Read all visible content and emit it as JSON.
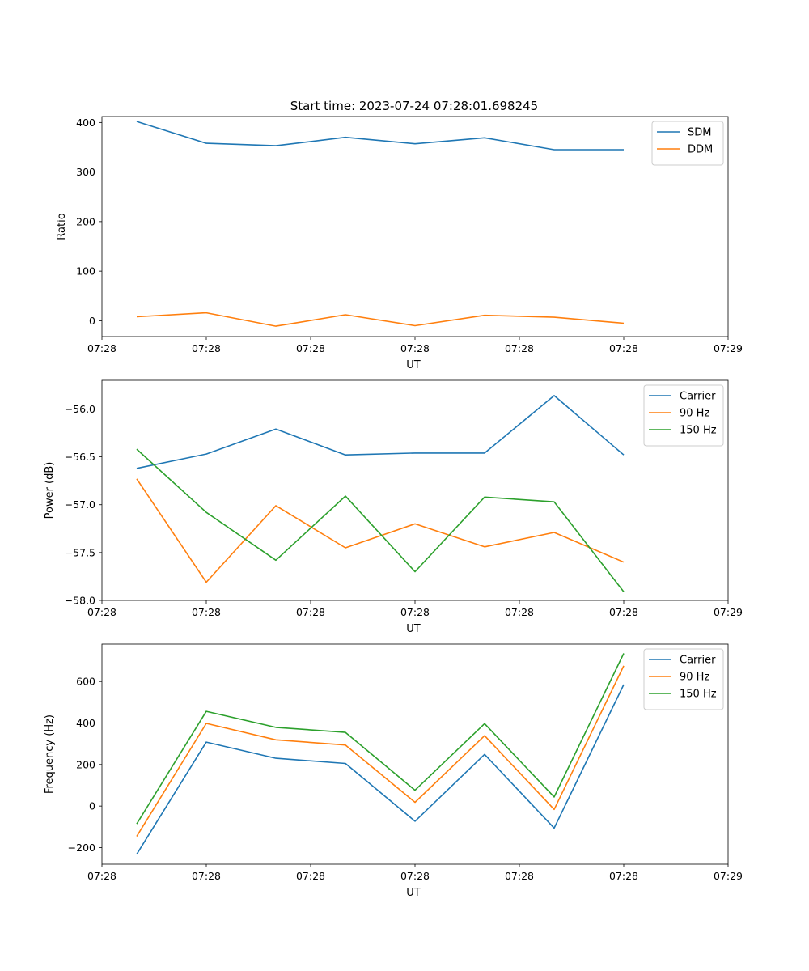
{
  "figure_title": "Start time: 2023-07-24 07:28:01.698245",
  "colors": {
    "blue": "#1f77b4",
    "orange": "#ff7f0e",
    "green": "#2ca02c"
  },
  "chart_data": [
    {
      "type": "line",
      "title": "Start time: 2023-07-24 07:28:01.698245",
      "xlabel": "UT",
      "ylabel": "Ratio",
      "x": [
        0,
        1,
        2,
        3,
        4,
        5,
        6,
        7
      ],
      "xlim": [
        -0.5,
        8.5
      ],
      "xticks": [
        -0.5,
        1,
        2.5,
        4,
        5.5,
        7,
        8.5
      ],
      "xtick_labels": [
        "07:28",
        "07:28",
        "07:28",
        "07:28",
        "07:28",
        "07:28",
        "07:29"
      ],
      "ylim": [
        -32,
        412
      ],
      "yticks": [
        0,
        100,
        200,
        300,
        400
      ],
      "ytick_labels": [
        "0",
        "100",
        "200",
        "300",
        "400"
      ],
      "legend": "top-right",
      "series": [
        {
          "name": "SDM",
          "color": "#1f77b4",
          "values": [
            402,
            358,
            353,
            370,
            357,
            369,
            345,
            345
          ]
        },
        {
          "name": "DDM",
          "color": "#ff7f0e",
          "values": [
            8,
            16,
            -11,
            12,
            -10,
            11,
            7,
            -5
          ]
        }
      ]
    },
    {
      "type": "line",
      "title": "",
      "xlabel": "UT",
      "ylabel": "Power (dB)",
      "x": [
        0,
        1,
        2,
        3,
        4,
        5,
        6,
        7
      ],
      "xlim": [
        -0.5,
        8.5
      ],
      "xticks": [
        -0.5,
        1,
        2.5,
        4,
        5.5,
        7,
        8.5
      ],
      "xtick_labels": [
        "07:28",
        "07:28",
        "07:28",
        "07:28",
        "07:28",
        "07:28",
        "07:29"
      ],
      "ylim": [
        -58.0,
        -55.7
      ],
      "yticks": [
        -58.0,
        -57.5,
        -57.0,
        -56.5,
        -56.0
      ],
      "ytick_labels": [
        "−58.0",
        "−57.5",
        "−57.0",
        "−56.5",
        "−56.0"
      ],
      "legend": "top-right",
      "series": [
        {
          "name": "Carrier",
          "color": "#1f77b4",
          "values": [
            -56.62,
            -56.47,
            -56.21,
            -56.48,
            -56.46,
            -56.46,
            -55.86,
            -56.48
          ]
        },
        {
          "name": "90 Hz",
          "color": "#ff7f0e",
          "values": [
            -56.73,
            -57.81,
            -57.01,
            -57.45,
            -57.2,
            -57.44,
            -57.29,
            -57.6
          ]
        },
        {
          "name": "150 Hz",
          "color": "#2ca02c",
          "values": [
            -56.42,
            -57.08,
            -57.58,
            -56.91,
            -57.7,
            -56.92,
            -56.97,
            -57.91
          ]
        }
      ]
    },
    {
      "type": "line",
      "title": "",
      "xlabel": "UT",
      "ylabel": "Frequency (Hz)",
      "x": [
        0,
        1,
        2,
        3,
        4,
        5,
        6,
        7
      ],
      "xlim": [
        -0.5,
        8.5
      ],
      "xticks": [
        -0.5,
        1,
        2.5,
        4,
        5.5,
        7,
        8.5
      ],
      "xtick_labels": [
        "07:28",
        "07:28",
        "07:28",
        "07:28",
        "07:28",
        "07:28",
        "07:29"
      ],
      "ylim": [
        -280,
        780
      ],
      "yticks": [
        -200,
        0,
        200,
        400,
        600
      ],
      "ytick_labels": [
        "−200",
        "0",
        "200",
        "400",
        "600"
      ],
      "legend": "top-right",
      "series": [
        {
          "name": "Carrier",
          "color": "#1f77b4",
          "values": [
            -232,
            308,
            230,
            205,
            -73,
            249,
            -106,
            585
          ]
        },
        {
          "name": "90 Hz",
          "color": "#ff7f0e",
          "values": [
            -146,
            398,
            319,
            294,
            18,
            339,
            -16,
            675
          ]
        },
        {
          "name": "150 Hz",
          "color": "#2ca02c",
          "values": [
            -86,
            456,
            379,
            355,
            76,
            397,
            44,
            735
          ]
        }
      ]
    }
  ]
}
